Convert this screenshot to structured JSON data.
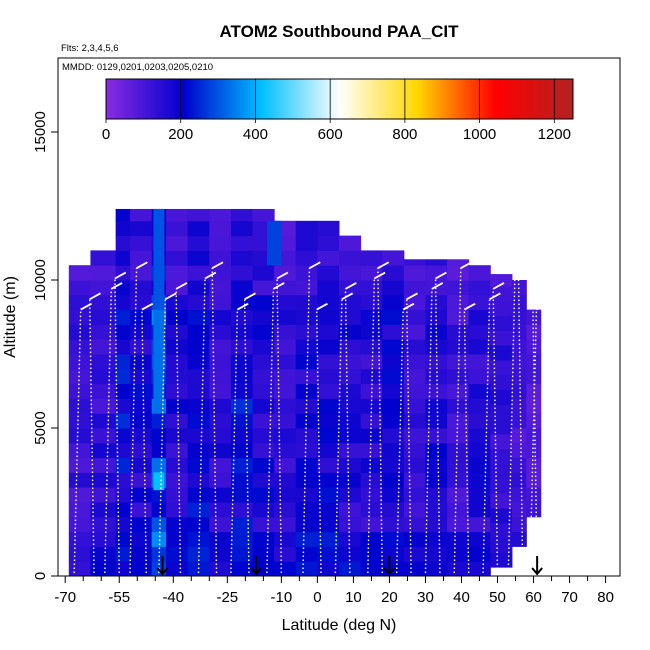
{
  "chart_data": {
    "type": "heatmap",
    "title": "ATOM2 Southbound PAA_CIT",
    "flights_note": "Flts: 2,3,4,5,6",
    "dates_note": "MMDD: 0129,0201,0203,0205,0210",
    "xlabel": "Latitude (deg N)",
    "ylabel": "Altitude (m)",
    "xlim": [
      -72,
      84
    ],
    "ylim": [
      0,
      17500
    ],
    "x_ticks": [
      -70,
      -55,
      -40,
      -25,
      -10,
      0,
      10,
      20,
      30,
      40,
      50,
      60,
      70,
      80
    ],
    "x_tick_labels": [
      "-70",
      "-55",
      "-40",
      "-25",
      "-10",
      "0",
      "10",
      "20",
      "30",
      "40",
      "50",
      "60",
      "70",
      "80"
    ],
    "x_minor_ticks": [
      -65,
      -60,
      -50,
      -45,
      -35,
      -30,
      -20,
      -15,
      -5,
      5,
      15,
      25,
      35,
      45,
      55,
      65,
      75
    ],
    "y_ticks": [
      0,
      5000,
      10000,
      15000
    ],
    "y_tick_labels": [
      "0",
      "5000",
      "10000",
      "15000"
    ],
    "colorbar": {
      "min": 0,
      "max": 1250,
      "ticks": [
        0,
        200,
        400,
        600,
        800,
        1000,
        1200
      ],
      "tick_labels": [
        "0",
        "200",
        "400",
        "600",
        "800",
        "1000",
        "1200"
      ],
      "colors": [
        "#8a2be2",
        "#0000cd",
        "#00bfff",
        "#ffffff",
        "#ffd700",
        "#ff0000",
        "#b22222"
      ]
    },
    "arrow_latitudes": [
      -43,
      -17,
      20,
      61
    ],
    "profile_latitudes": [
      -67.5,
      -62,
      -59,
      -55,
      -52,
      -47.5,
      -44,
      -38,
      -33,
      -28,
      -24,
      -19,
      -14,
      -10,
      -4,
      1,
      5,
      9,
      14,
      18,
      22,
      26,
      30,
      34,
      38,
      42,
      46,
      50,
      53,
      57,
      59,
      61
    ],
    "columns": [
      {
        "lat0": -69,
        "lat1": -63,
        "top": 10500,
        "bottom": 0,
        "value": 120
      },
      {
        "lat0": -63,
        "lat1": -56,
        "top": 11000,
        "bottom": 0,
        "value": 140
      },
      {
        "lat0": -56,
        "lat1": -52,
        "top": 12400,
        "bottom": 0,
        "value": 200
      },
      {
        "lat0": -52,
        "lat1": -46,
        "top": 12400,
        "bottom": 0,
        "value": 170
      },
      {
        "lat0": -46,
        "lat1": -42,
        "top": 12400,
        "bottom": 0,
        "value": 280
      },
      {
        "lat0": -42,
        "lat1": -36,
        "top": 12400,
        "bottom": 0,
        "value": 160
      },
      {
        "lat0": -36,
        "lat1": -30,
        "top": 12400,
        "bottom": 0,
        "value": 190
      },
      {
        "lat0": -30,
        "lat1": -24,
        "top": 12400,
        "bottom": 0,
        "value": 150
      },
      {
        "lat0": -24,
        "lat1": -18,
        "top": 12400,
        "bottom": 0,
        "value": 200
      },
      {
        "lat0": -18,
        "lat1": -12,
        "top": 12400,
        "bottom": 0,
        "value": 170
      },
      {
        "lat0": -12,
        "lat1": -6,
        "top": 12000,
        "bottom": 0,
        "value": 140
      },
      {
        "lat0": -6,
        "lat1": 0,
        "top": 12000,
        "bottom": 0,
        "value": 170
      },
      {
        "lat0": 0,
        "lat1": 6,
        "top": 12000,
        "bottom": 0,
        "value": 180
      },
      {
        "lat0": 6,
        "lat1": 12,
        "top": 11500,
        "bottom": 0,
        "value": 160
      },
      {
        "lat0": 12,
        "lat1": 18,
        "top": 11000,
        "bottom": 0,
        "value": 150
      },
      {
        "lat0": 18,
        "lat1": 24,
        "top": 11000,
        "bottom": 0,
        "value": 170
      },
      {
        "lat0": 24,
        "lat1": 30,
        "top": 10700,
        "bottom": 0,
        "value": 130
      },
      {
        "lat0": 30,
        "lat1": 36,
        "top": 10700,
        "bottom": 0,
        "value": 160
      },
      {
        "lat0": 36,
        "lat1": 42,
        "top": 10700,
        "bottom": 0,
        "value": 120
      },
      {
        "lat0": 42,
        "lat1": 48,
        "top": 10500,
        "bottom": 0,
        "value": 150
      },
      {
        "lat0": 48,
        "lat1": 54,
        "top": 10200,
        "bottom": 300,
        "value": 130
      },
      {
        "lat0": 54,
        "lat1": 58,
        "top": 10000,
        "bottom": 1000,
        "value": 110
      },
      {
        "lat0": 58,
        "lat1": 62,
        "top": 9000,
        "bottom": 2000,
        "value": 90
      }
    ],
    "highlights": [
      {
        "lat0": -45.5,
        "lat1": -42.5,
        "alt0": 5500,
        "alt1": 9000,
        "value": 330
      },
      {
        "lat0": -45.5,
        "lat1": -42.5,
        "alt0": 2900,
        "alt1": 3500,
        "value": 420
      },
      {
        "lat0": -45.5,
        "lat1": -42.5,
        "alt0": 9000,
        "alt1": 12400,
        "value": 300
      },
      {
        "lat0": -14,
        "lat1": -10,
        "alt0": 10500,
        "alt1": 12000,
        "value": 280
      }
    ]
  }
}
